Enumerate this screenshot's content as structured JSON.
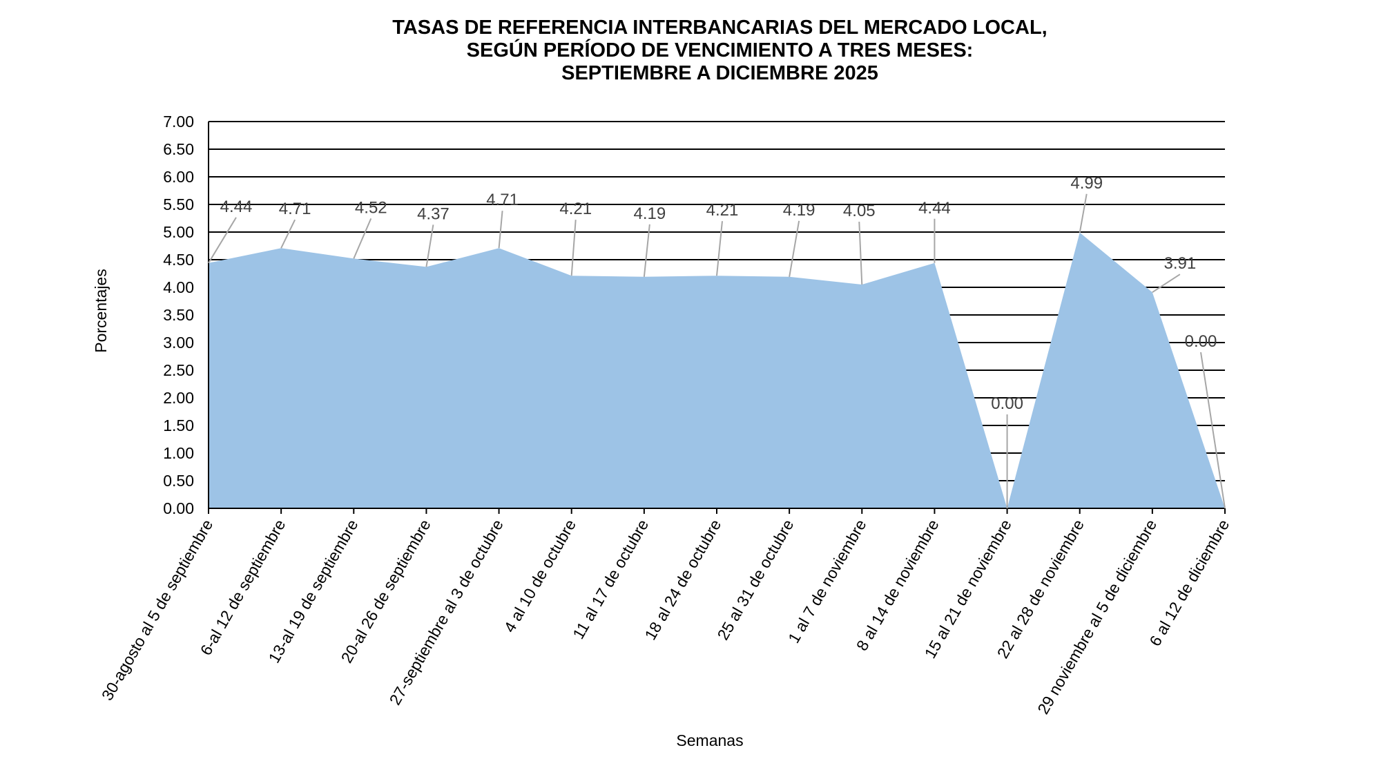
{
  "chart_data": {
    "type": "area",
    "title_lines": [
      "TASAS DE REFERENCIA INTERBANCARIAS DEL MERCADO LOCAL,",
      "SEGÚN PERÍODO DE VENCIMIENTO A TRES MESES:",
      "SEPTIEMBRE A DICIEMBRE 2025"
    ],
    "xlabel": "Semanas",
    "ylabel": "Porcentajes",
    "ylim": [
      0,
      7
    ],
    "ytick_step": 0.5,
    "yticks": [
      "0.00",
      "0.50",
      "1.00",
      "1.50",
      "2.00",
      "2.50",
      "3.00",
      "3.50",
      "4.00",
      "4.50",
      "5.00",
      "5.50",
      "6.00",
      "6.50",
      "7.00"
    ],
    "categories": [
      "30-agosto al 5 de septiembre",
      "6-al 12 de septiembre",
      "13-al 19 de septiembre",
      "20-al 26 de septiembre",
      "27-septiembre al 3 de octubre",
      "4 al 10 de octubre",
      "11 al 17 de octubre",
      "18 al 24 de octubre",
      "25 al 31 de octubre",
      "1 al 7 de noviembre",
      "8 al 14 de noviembre",
      "15 al 21 de noviembre",
      "22 al 28 de noviembre",
      "29 noviembre al 5 de diciembre",
      "6 al 12 de diciembre"
    ],
    "values": [
      4.44,
      4.71,
      4.52,
      4.37,
      4.71,
      4.21,
      4.19,
      4.21,
      4.19,
      4.05,
      4.44,
      0.0,
      4.99,
      3.91,
      0.0
    ],
    "data_labels": [
      "4.44",
      "4.71",
      "4.52",
      "4.37",
      "4.71",
      "4.21",
      "4.19",
      "4.21",
      "4.19",
      "4.05",
      "4.44",
      "0.00",
      "4.99",
      "3.91",
      "0.00"
    ],
    "fill_color": "#9dc3e6",
    "gridlines": true,
    "legend": "none"
  }
}
